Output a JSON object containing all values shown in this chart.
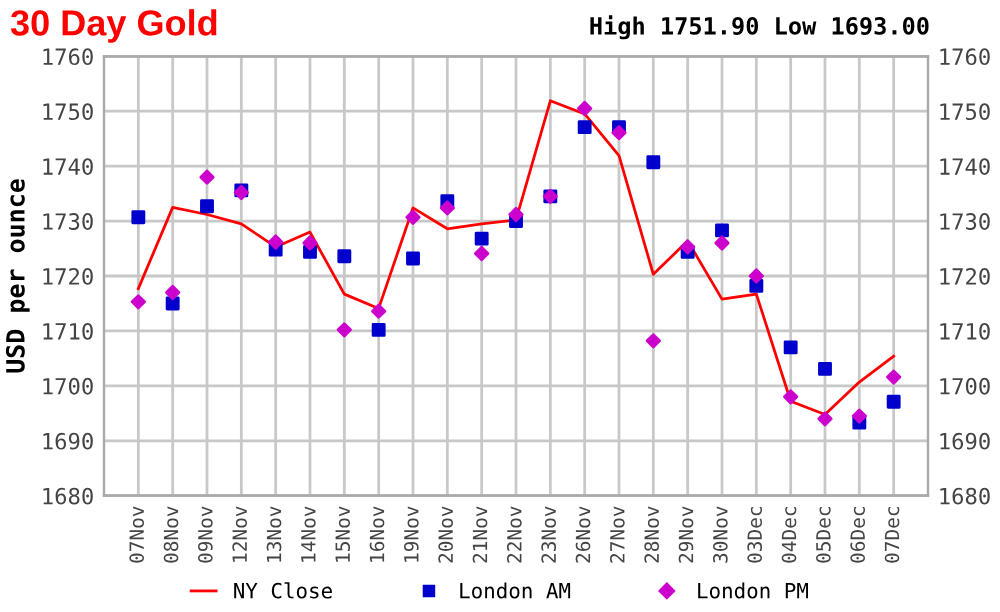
{
  "chart_data": {
    "type": "line",
    "title": "30 Day Gold",
    "subtitle": "High 1751.90 Low 1693.00",
    "ylabel": "USD per ounce",
    "categories": [
      "07Nov",
      "08Nov",
      "09Nov",
      "12Nov",
      "13Nov",
      "14Nov",
      "15Nov",
      "16Nov",
      "19Nov",
      "20Nov",
      "21Nov",
      "22Nov",
      "23Nov",
      "26Nov",
      "27Nov",
      "28Nov",
      "29Nov",
      "30Nov",
      "03Dec",
      "04Dec",
      "05Dec",
      "06Dec",
      "07Dec"
    ],
    "series": [
      {
        "name": "NY Close",
        "color": "#ff0000",
        "marker": "none",
        "values": [
          1717.7,
          1732.5,
          1731.2,
          1729.5,
          1725.3,
          1728,
          1716.7,
          1714.1,
          1732.4,
          1728.6,
          1729.5,
          1730.2,
          1751.9,
          1749.5,
          1741.9,
          1720.3,
          1726.4,
          1715.8,
          1716.7,
          1697.2,
          1694.8,
          1700.7,
          1705.4
        ]
      },
      {
        "name": "London AM",
        "type": "scatter",
        "color": "#0000cc",
        "marker": "square",
        "values": [
          1730.7,
          1715,
          1732.7,
          1735.6,
          1724.8,
          1724.4,
          1723.6,
          1710.2,
          1723.2,
          1733.6,
          1726.8,
          1730,
          1734.5,
          1747.1,
          1747.1,
          1740.7,
          1724.4,
          1728.3,
          1718.2,
          1707,
          1703.1,
          1693.3,
          1697.1
        ]
      },
      {
        "name": "London PM",
        "type": "scatter",
        "color": "#cc00cc",
        "marker": "diamond",
        "values": [
          1715.3,
          1717,
          1738,
          1735.2,
          1726.2,
          1726,
          1710.2,
          1713.6,
          1730.7,
          1732.4,
          1724.1,
          1731.2,
          1734.5,
          1750.5,
          1746.1,
          1708.2,
          1725.3,
          1726,
          1720,
          1698,
          1694,
          1694.5,
          1701.6
        ]
      }
    ],
    "ylim": [
      1680,
      1760
    ],
    "yticks": [
      1680,
      1690,
      1700,
      1710,
      1720,
      1730,
      1740,
      1750,
      1760
    ],
    "y2lim": [
      1680,
      1760
    ],
    "y2ticks": [
      1680,
      1690,
      1700,
      1710,
      1720,
      1730,
      1740,
      1750,
      1760
    ],
    "grid": true,
    "legend": "bottom"
  }
}
